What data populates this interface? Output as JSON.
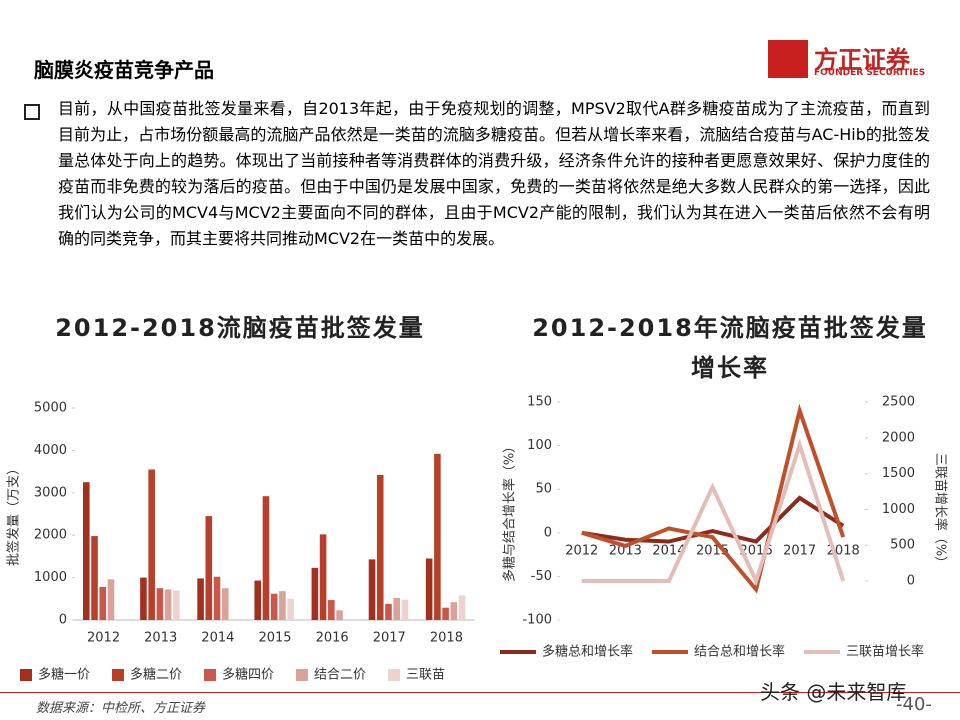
{
  "header": {
    "title": "脑膜炎疫苗竞争产品",
    "logo_name": "方正证券",
    "logo_sub": "FOUNDER SECURITIES"
  },
  "body": {
    "paragraph": "目前，从中国疫苗批签发量来看，自2013年起，由于免疫规划的调整，MPSV2取代A群多糖疫苗成为了主流疫苗，而直到目前为止，占市场份额最高的流脑产品依然是一类苗的流脑多糖疫苗。但若从增长率来看，流脑结合疫苗与AC-Hib的批签发量总体处于向上的趋势。体现出了当前接种者等消费群体的消费升级，经济条件允许的接种者更愿意效果好、保护力度佳的疫苗而非免费的较为落后的疫苗。但由于中国仍是发展中国家，免费的一类苗将依然是绝大多数人民群众的第一选择，因此我们认为公司的MCV4与MCV2主要面向不同的群体，且由于MCV2产能的限制，我们认为其在进入一类苗后依然不会有明确的同类竞争，而其主要将共同推动MCV2在一类苗中的发展。"
  },
  "chart_data": [
    {
      "type": "bar",
      "title": "2012-2018流脑疫苗批签发量",
      "y_label": "批签发量（万支）",
      "categories": [
        "2012",
        "2013",
        "2014",
        "2015",
        "2016",
        "2017",
        "2018"
      ],
      "series": [
        {
          "name": "多糖一价",
          "color": "#a3301f",
          "values": [
            3250,
            1000,
            980,
            930,
            1230,
            1430,
            1450
          ]
        },
        {
          "name": "多糖二价",
          "color": "#b8402a",
          "values": [
            1980,
            3550,
            2450,
            2920,
            2020,
            3420,
            3920
          ]
        },
        {
          "name": "多糖四价",
          "color": "#c9584a",
          "values": [
            780,
            750,
            1020,
            620,
            470,
            380,
            290
          ]
        },
        {
          "name": "结合二价",
          "color": "#d9a39c",
          "values": [
            960,
            720,
            750,
            680,
            230,
            520,
            420
          ]
        },
        {
          "name": "三联苗",
          "color": "#ecd3cf",
          "values": [
            0,
            700,
            0,
            500,
            0,
            480,
            580
          ]
        }
      ],
      "ylim": [
        0,
        5000
      ],
      "yticks": [
        0,
        1000,
        2000,
        3000,
        4000,
        5000
      ]
    },
    {
      "type": "line",
      "title": "2012-2018年流脑疫苗批签发量增长率",
      "y_label": "多糖与结合增长率（%）",
      "y2_label": "三联苗增长率（%）",
      "categories": [
        "2012",
        "2013",
        "2014",
        "2015",
        "2016",
        "2017",
        "2018"
      ],
      "series": [
        {
          "name": "多糖总和增长率",
          "color": "#8e2a1a",
          "values": [
            0,
            -8,
            -10,
            2,
            -10,
            40,
            8
          ]
        },
        {
          "name": "结合总和增长率",
          "color": "#c0502a",
          "values": [
            0,
            -15,
            5,
            -5,
            -65,
            140,
            -5
          ]
        },
        {
          "name": "三联苗增长率",
          "color": "#e3bdb8",
          "axis": "y2",
          "values": [
            0,
            0,
            0,
            1313,
            0,
            1900,
            0
          ]
        }
      ],
      "ylim": [
        -100,
        150
      ],
      "yticks": [
        -100,
        -50,
        0,
        50,
        100,
        150
      ],
      "y2lim": [
        -545,
        2500
      ],
      "y2ticks": [
        0,
        500,
        1000,
        1500,
        2000,
        2500
      ]
    }
  ],
  "footer": {
    "source": "数据来源：中检所、方正证券",
    "page": "-40-",
    "watermark": "头条 @未来智库"
  }
}
